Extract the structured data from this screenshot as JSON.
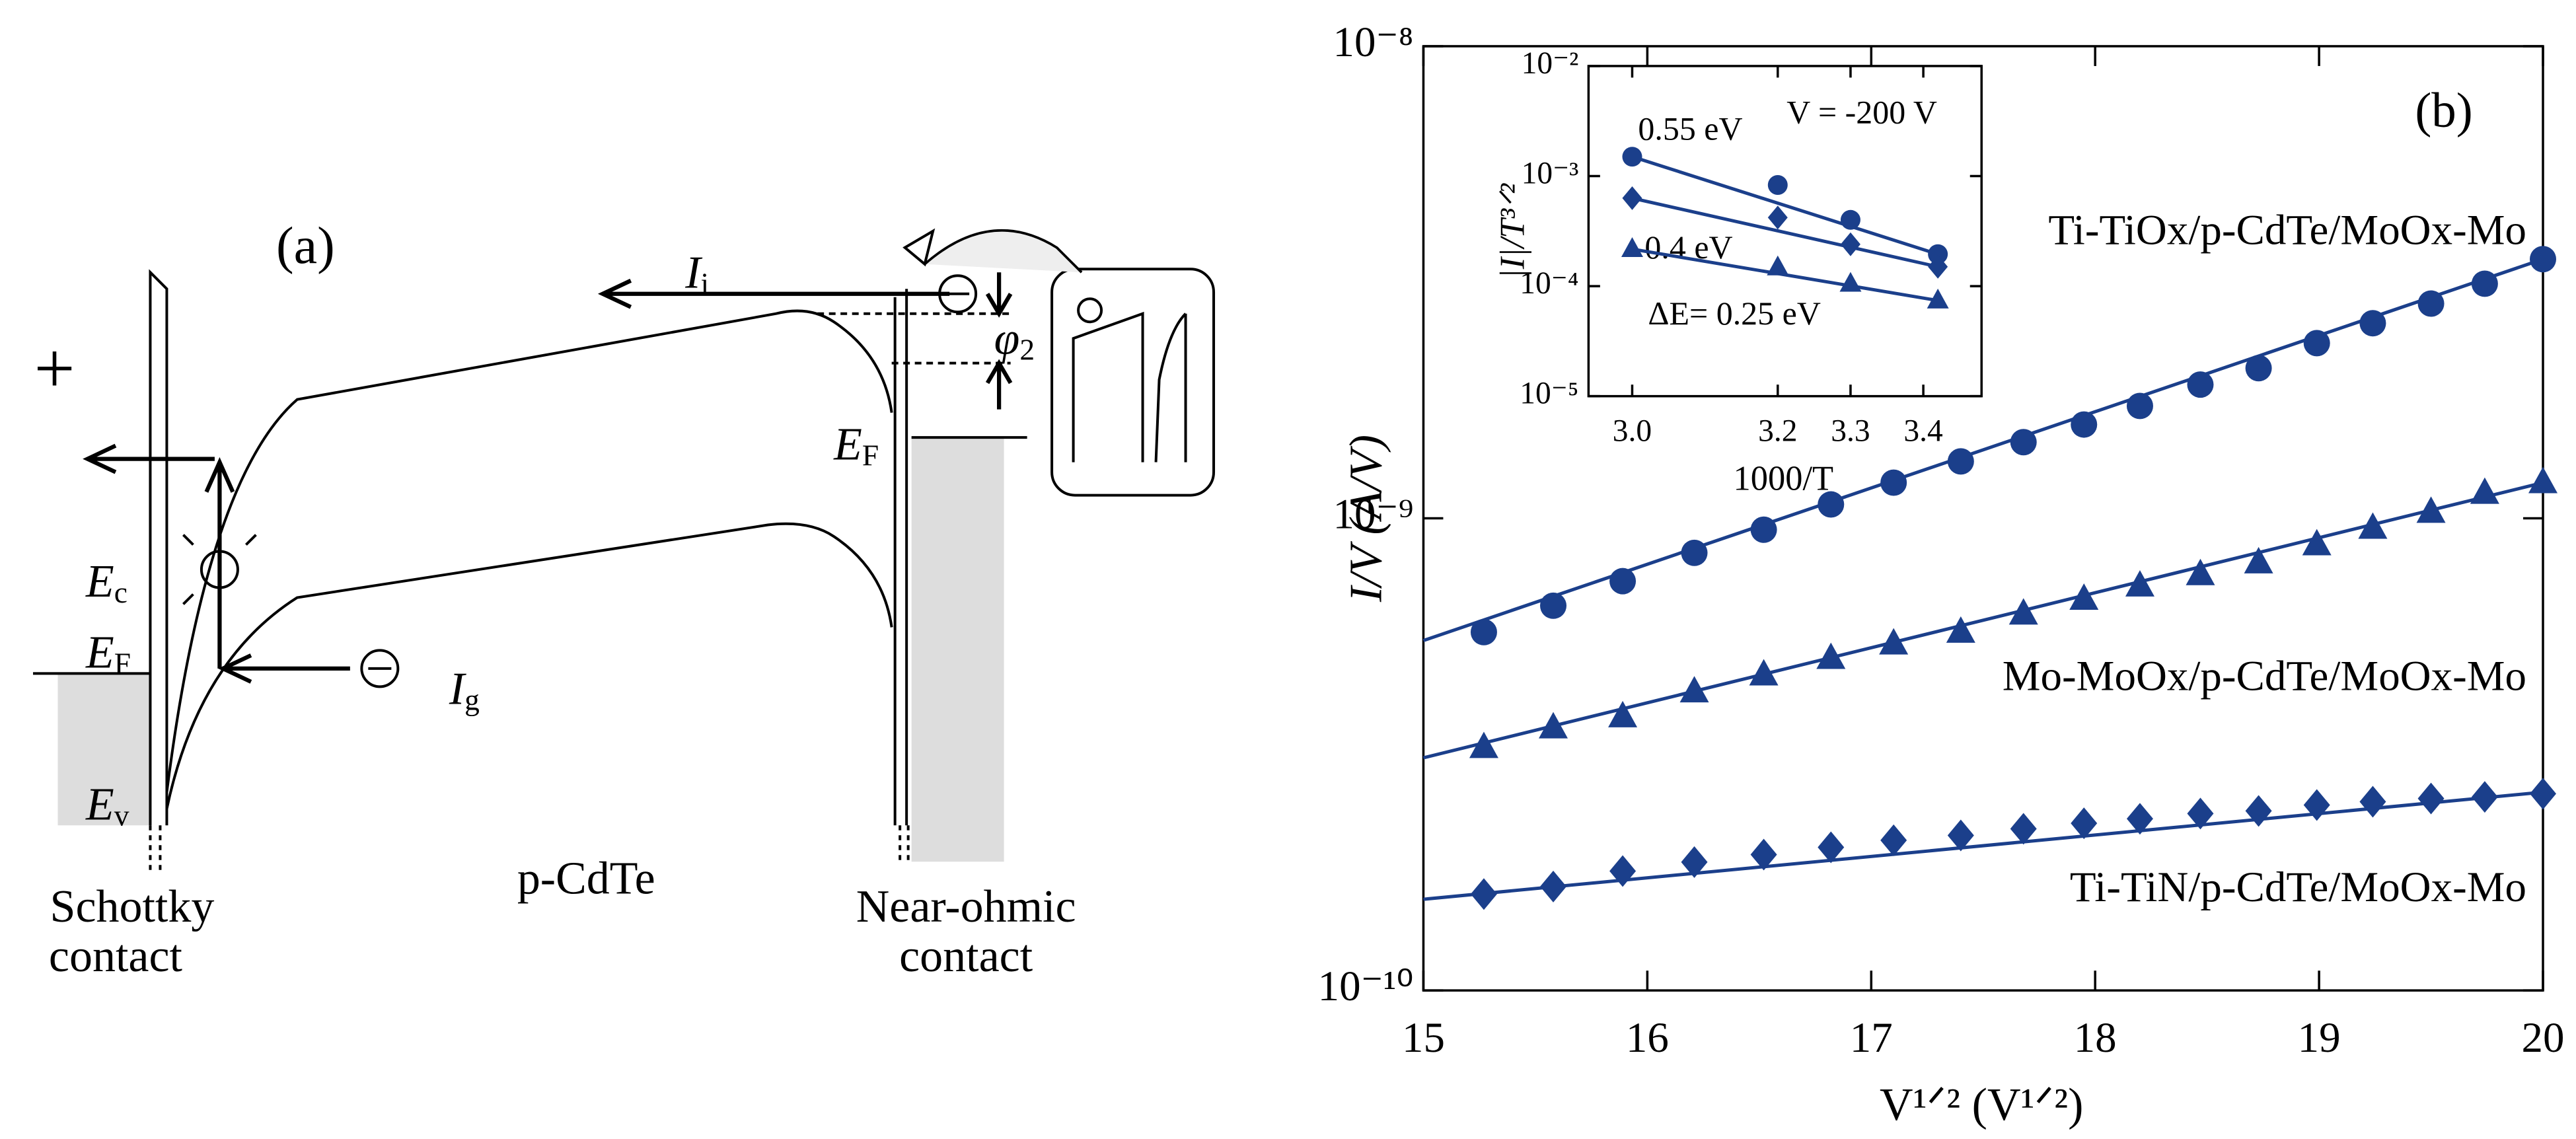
{
  "diagram": {
    "labels": [
      {
        "text": "(a)"
      },
      {
        "text": "+"
      },
      {
        "text": "E",
        "sub": "c"
      },
      {
        "text": "E",
        "sub": "F"
      },
      {
        "text": "E",
        "sub": "v"
      },
      {
        "text": "Schottky"
      },
      {
        "text": "contact"
      },
      {
        "text": "p-CdTe"
      },
      {
        "text": "Near-ohmic"
      },
      {
        "text": "contact"
      },
      {
        "text": "I",
        "sub": "i"
      },
      {
        "text": "I",
        "sub": "g"
      },
      {
        "text": "E",
        "sub": "F"
      },
      {
        "text": "φ",
        "sub": "2"
      }
    ]
  },
  "chart_data": [
    {
      "type": "scatter",
      "log_y": true,
      "xlabel": "V¹ᐟ² (V¹ᐟ²)",
      "ylabel": "I/V (A/V)",
      "annotations": [
        "(b)"
      ],
      "xlim": [
        15,
        20
      ],
      "xticks": [
        15,
        16,
        17,
        18,
        19,
        20
      ],
      "ylim": [
        1e-10,
        1e-08
      ],
      "yticks": [
        {
          "value": 1e-10,
          "label": "10⁻¹⁰"
        },
        {
          "value": 1e-09,
          "label": "10⁻⁹"
        },
        {
          "value": 1e-08,
          "label": "10⁻⁸"
        }
      ],
      "x": [
        15.27,
        15.58,
        15.89,
        16.21,
        16.52,
        16.82,
        17.1,
        17.4,
        17.68,
        17.95,
        18.2,
        18.47,
        18.73,
        18.99,
        19.24,
        19.5,
        19.74,
        20.0
      ],
      "series": [
        {
          "name": "Ti-TiOx/p-CdTe/MoOx-Mo",
          "color": "#1b3f8b",
          "marker": "circle",
          "values": [
            5.74e-10,
            6.53e-10,
            7.36e-10,
            8.45e-10,
            9.46e-10,
            1.07e-09,
            1.19e-09,
            1.32e-09,
            1.45e-09,
            1.58e-09,
            1.73e-09,
            1.92e-09,
            2.08e-09,
            2.35e-09,
            2.59e-09,
            2.85e-09,
            3.14e-09,
            3.54e-09
          ],
          "fit": {
            "x": [
              15,
              20
            ],
            "values": [
              5.51e-10,
              3.54e-09
            ]
          }
        },
        {
          "name": "Mo-MoOx/p-CdTe/MoOx-Mo",
          "color": "#1b3f8b",
          "marker": "triangle",
          "values": [
            3.27e-10,
            3.6e-10,
            3.8e-10,
            4.29e-10,
            4.66e-10,
            5.05e-10,
            5.42e-10,
            5.74e-10,
            6.27e-10,
            6.74e-10,
            7.19e-10,
            7.6e-10,
            8.05e-10,
            8.79e-10,
            9.53e-10,
            1.03e-09,
            1.13e-09,
            1.19e-09
          ],
          "fit": {
            "x": [
              15,
              20
            ],
            "values": [
              3.11e-10,
              1.19e-09
            ]
          }
        },
        {
          "name": "Ti-TiN/p-CdTe/MoOx-Mo",
          "color": "#1b3f8b",
          "marker": "diamond",
          "values": [
            1.6e-10,
            1.66e-10,
            1.79e-10,
            1.87e-10,
            1.94e-10,
            2.01e-10,
            2.08e-10,
            2.13e-10,
            2.2e-10,
            2.26e-10,
            2.31e-10,
            2.37e-10,
            2.4e-10,
            2.47e-10,
            2.51e-10,
            2.55e-10,
            2.57e-10,
            2.61e-10
          ],
          "fit": {
            "x": [
              15,
              20
            ],
            "values": [
              1.56e-10,
              2.63e-10
            ]
          }
        }
      ]
    },
    {
      "type": "scatter",
      "log_y": true,
      "xlabel": "1000/T",
      "ylabel": "|I|/T³ᐟ²",
      "annotations": [
        "0.55 eV",
        "0.4 eV",
        "ΔE= 0.25 eV",
        "V = -200 V"
      ],
      "xlim": [
        2.94,
        3.48
      ],
      "xticks": [
        {
          "value": 3.0,
          "label": "3.0"
        },
        {
          "value": 3.2,
          "label": "3.2"
        },
        {
          "value": 3.3,
          "label": "3.3"
        },
        {
          "value": 3.4,
          "label": "3.4"
        }
      ],
      "ylim": [
        1e-05,
        0.01
      ],
      "yticks": [
        {
          "value": 1e-05,
          "label": "10⁻⁵"
        },
        {
          "value": 0.0001,
          "label": "10⁻⁴"
        },
        {
          "value": 0.001,
          "label": "10⁻³"
        },
        {
          "value": 0.01,
          "label": "10⁻²"
        }
      ],
      "x": [
        3.0,
        3.2,
        3.3,
        3.42
      ],
      "series": [
        {
          "color": "#1b3f8b",
          "marker": "circle",
          "values": [
            0.0015,
            0.00083,
            0.0004,
            0.000195
          ],
          "fit": {
            "x": [
              3.0,
              3.42
            ],
            "values": [
              0.0015,
              0.000195
            ]
          }
        },
        {
          "color": "#1b3f8b",
          "marker": "diamond",
          "values": [
            0.00063,
            0.00042,
            0.00024,
            0.00015
          ],
          "fit": {
            "x": [
              3.0,
              3.42
            ],
            "values": [
              0.00063,
              0.00015
            ]
          }
        },
        {
          "color": "#1b3f8b",
          "marker": "triangle",
          "values": [
            0.000217,
            0.000148,
            0.000105,
            7.4e-05
          ],
          "fit": {
            "x": [
              3.0,
              3.42
            ],
            "values": [
              0.000217,
              7.4e-05
            ]
          }
        }
      ]
    }
  ]
}
